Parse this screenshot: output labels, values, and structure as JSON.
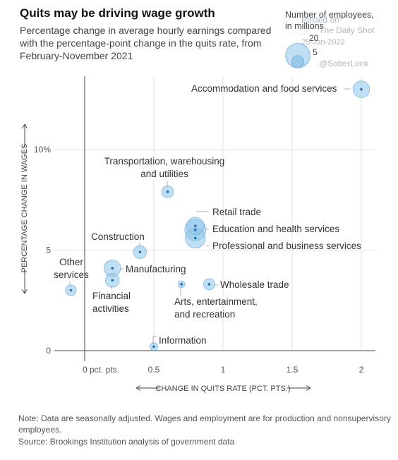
{
  "title": "Quits may be driving wage growth",
  "subtitle": "Percentage change in average hourly earnings compared with the percentage-point change in the quits rate, from February-November 2021",
  "legend": {
    "title_line1": "Number of employees,",
    "title_line2": "in millions",
    "sizes": [
      {
        "label": "20",
        "value": 20
      },
      {
        "label": "5",
        "value": 5
      }
    ]
  },
  "watermark": {
    "line1": "Posted on",
    "line2": "The Daily Shot",
    "line3": "25-Jan-2022",
    "line4": "@SoberLook"
  },
  "notes": "Note: Data are seasonally adjusted. Wages and employment are for production and nonsupervisory employees.",
  "source": "Source: Brookings Institution analysis of government data",
  "colors": {
    "bubble_fill": "#8cc4ea",
    "bubble_stroke": "#6baedc",
    "dot": "#1f6fb2",
    "axis": "#444444",
    "grid": "#e3e3e3"
  },
  "chart_data": {
    "type": "scatter",
    "xlabel": "CHANGE IN QUITS RATE (PCT. PTS.)",
    "ylabel": "PERCENTAGE CHANGE IN WAGES",
    "xlim": [
      -0.25,
      2.1
    ],
    "ylim": [
      0,
      13.5
    ],
    "x_ticks": [
      {
        "value": 0,
        "label": "0 pct. pts."
      },
      {
        "value": 0.5,
        "label": "0.5"
      },
      {
        "value": 1,
        "label": "1"
      },
      {
        "value": 1.5,
        "label": "1.5"
      },
      {
        "value": 2,
        "label": "2"
      }
    ],
    "y_ticks": [
      {
        "value": 0,
        "label": "0"
      },
      {
        "value": 5,
        "label": "5"
      },
      {
        "value": 10,
        "label": "10%"
      }
    ],
    "grid": true,
    "points": [
      {
        "label": "Accommodation and food services",
        "x": 2.0,
        "y": 13.0,
        "size": 12.5
      },
      {
        "label": "Transportation, warehousing and utilities",
        "x": 0.6,
        "y": 7.9,
        "size": 6.3
      },
      {
        "label": "Retail trade",
        "x": 0.8,
        "y": 6.2,
        "size": 13.8
      },
      {
        "label": "Education and health services",
        "x": 0.8,
        "y": 6.0,
        "size": 20.0
      },
      {
        "label": "Professional and business services",
        "x": 0.8,
        "y": 5.6,
        "size": 18.0
      },
      {
        "label": "Construction",
        "x": 0.4,
        "y": 4.9,
        "size": 7.5
      },
      {
        "label": "Manufacturing",
        "x": 0.2,
        "y": 4.1,
        "size": 12.3
      },
      {
        "label": "Financial activities",
        "x": 0.2,
        "y": 3.5,
        "size": 8.5
      },
      {
        "label": "Other services",
        "x": -0.1,
        "y": 3.0,
        "size": 5.2
      },
      {
        "label": "Arts, entertainment, and recreation",
        "x": 0.7,
        "y": 3.3,
        "size": 2.1
      },
      {
        "label": "Wholesale trade",
        "x": 0.9,
        "y": 3.3,
        "size": 5.7
      },
      {
        "label": "Information",
        "x": 0.5,
        "y": 0.2,
        "size": 2.8
      }
    ]
  }
}
